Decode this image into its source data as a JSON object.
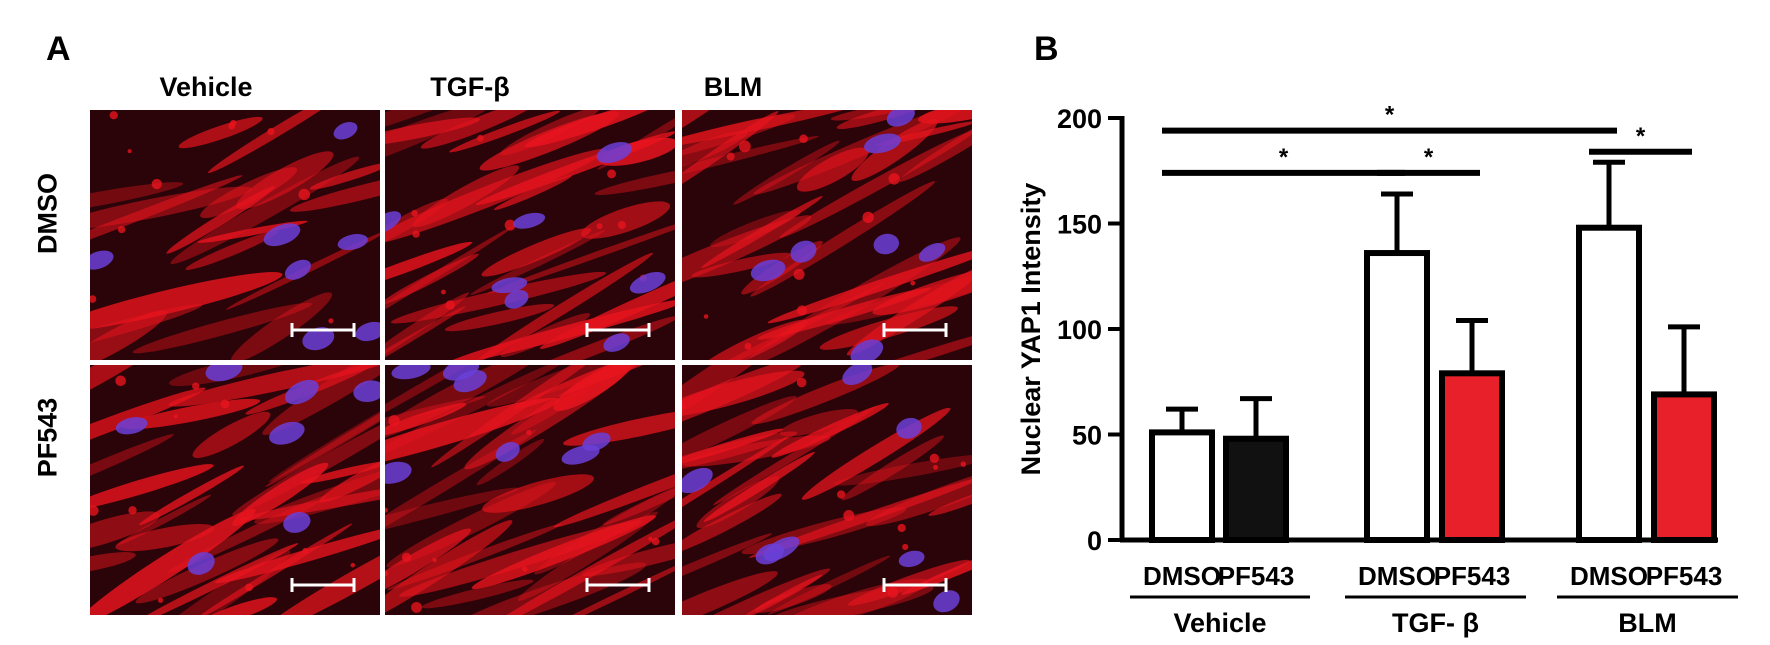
{
  "panel_a": {
    "label": "A",
    "columns": [
      "Vehicle",
      "TGF-β",
      "BLM"
    ],
    "rows": [
      "DMSO",
      "PF543"
    ],
    "stain_colors": {
      "background": "#2a0408",
      "cytoplasm": "#e8141e",
      "nucleus": "#6b3fd8",
      "scale_bar": "#ffffff"
    }
  },
  "panel_b": {
    "label": "B"
  },
  "chart_data": {
    "type": "bar",
    "ylabel": "Nuclear YAP1 Intensity",
    "ylim": [
      0,
      200
    ],
    "yticks": [
      0,
      50,
      100,
      150,
      200
    ],
    "groups": [
      {
        "name": "Vehicle",
        "bars": [
          {
            "label": "DMSO",
            "value": 51,
            "error": 11,
            "color": "#ffffff"
          },
          {
            "label": "PF543",
            "value": 48,
            "error": 19,
            "color": "#111111"
          }
        ]
      },
      {
        "name": "TGF- β",
        "bars": [
          {
            "label": "DMSO",
            "value": 136,
            "error": 28,
            "color": "#ffffff"
          },
          {
            "label": "PF543",
            "value": 79,
            "error": 25,
            "color": "#e8202a"
          }
        ]
      },
      {
        "name": "BLM",
        "bars": [
          {
            "label": "DMSO",
            "value": 148,
            "error": 31,
            "color": "#ffffff"
          },
          {
            "label": "PF543",
            "value": 69,
            "error": 32,
            "color": "#e8202a"
          }
        ]
      }
    ],
    "significance": [
      {
        "from": [
          0,
          0
        ],
        "to": [
          2,
          0
        ],
        "value": 194,
        "label": "*"
      },
      {
        "from": [
          0,
          0
        ],
        "to": [
          1,
          0
        ],
        "value": 174,
        "label": "*"
      },
      {
        "from": [
          1,
          0
        ],
        "to": [
          1,
          1
        ],
        "value": 174,
        "label": "*"
      },
      {
        "from": [
          2,
          0
        ],
        "to": [
          2,
          1
        ],
        "value": 184,
        "label": "*"
      }
    ]
  }
}
